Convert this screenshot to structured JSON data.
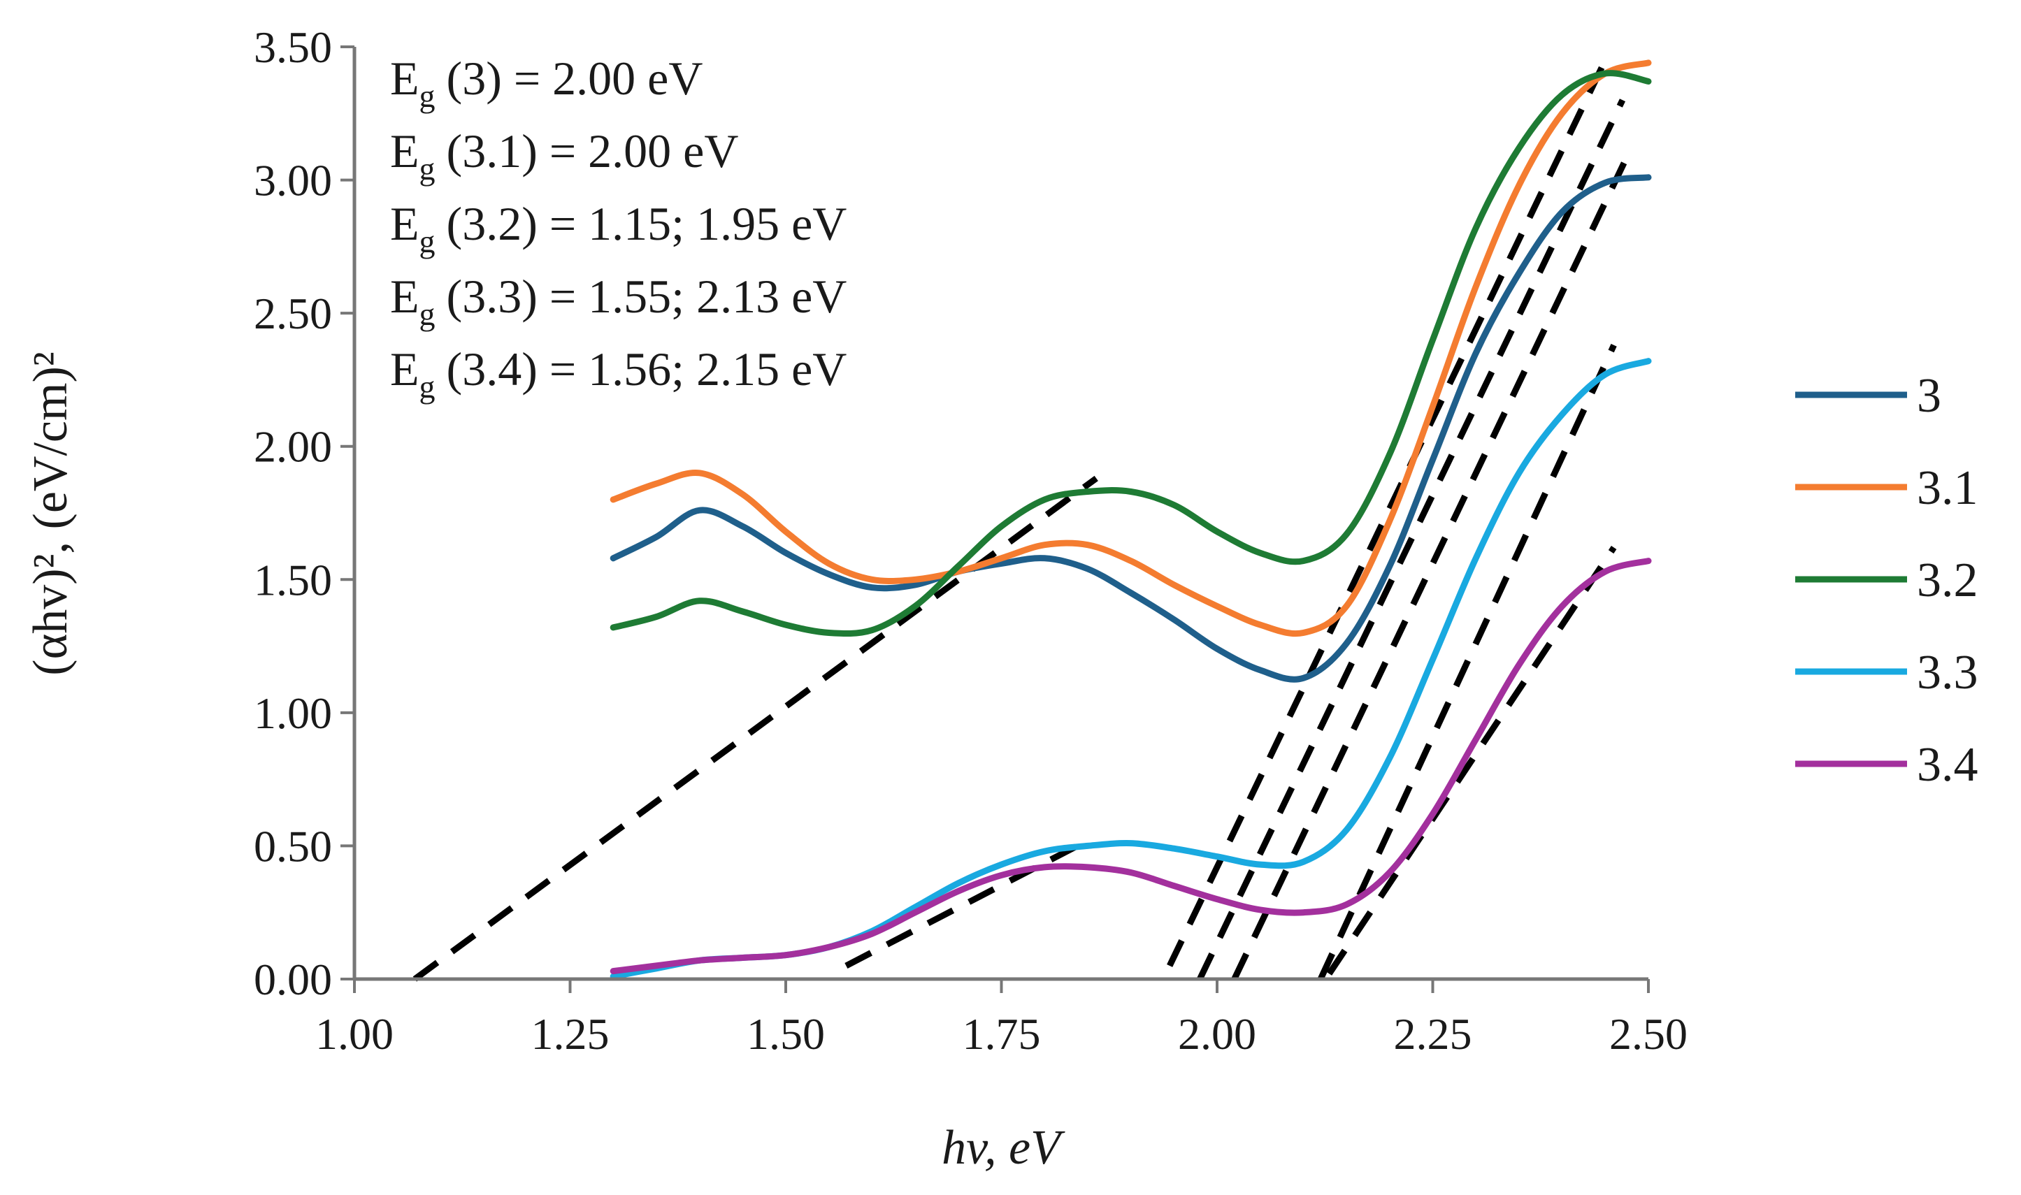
{
  "chart_data": {
    "type": "line",
    "title": "",
    "xlabel": "hv, eV",
    "ylabel": "(αhv)², (eV/cm)²",
    "xlim": [
      1.0,
      2.5
    ],
    "ylim": [
      0.0,
      3.5
    ],
    "xticks": [
      "1.00",
      "1.25",
      "1.50",
      "1.75",
      "2.00",
      "2.25",
      "2.50"
    ],
    "yticks": [
      "0.00",
      "0.50",
      "1.00",
      "1.50",
      "2.00",
      "2.50",
      "3.00",
      "3.50"
    ],
    "grid": false,
    "legend_position": "right",
    "annotations": [
      {
        "label": "(3) = 2.00 eV"
      },
      {
        "label": "(3.1) = 2.00 eV"
      },
      {
        "label": "(3.2) = 1.15; 1.95 eV"
      },
      {
        "label": "(3.3) = 1.55; 2.13 eV"
      },
      {
        "label": "(3.4) = 1.56; 2.15 eV"
      }
    ],
    "annotation_symbol": "E",
    "annotation_subscript": "g",
    "series": [
      {
        "name": "3",
        "color": "#1f5f8b",
        "x": [
          1.3,
          1.35,
          1.4,
          1.45,
          1.5,
          1.55,
          1.6,
          1.65,
          1.7,
          1.75,
          1.8,
          1.85,
          1.9,
          1.95,
          2.0,
          2.05,
          2.1,
          2.15,
          2.2,
          2.25,
          2.3,
          2.35,
          2.4,
          2.45,
          2.5
        ],
        "y": [
          1.58,
          1.66,
          1.76,
          1.7,
          1.6,
          1.52,
          1.47,
          1.48,
          1.53,
          1.56,
          1.58,
          1.54,
          1.45,
          1.35,
          1.24,
          1.16,
          1.13,
          1.26,
          1.55,
          1.95,
          2.35,
          2.65,
          2.88,
          2.99,
          3.01
        ]
      },
      {
        "name": "3.1",
        "color": "#f47c30",
        "x": [
          1.3,
          1.35,
          1.4,
          1.45,
          1.5,
          1.55,
          1.6,
          1.65,
          1.7,
          1.75,
          1.8,
          1.85,
          1.9,
          1.95,
          2.0,
          2.05,
          2.1,
          2.15,
          2.2,
          2.25,
          2.3,
          2.35,
          2.4,
          2.45,
          2.5
        ],
        "y": [
          1.8,
          1.86,
          1.9,
          1.82,
          1.68,
          1.56,
          1.5,
          1.5,
          1.53,
          1.58,
          1.63,
          1.63,
          1.57,
          1.48,
          1.4,
          1.33,
          1.3,
          1.4,
          1.72,
          2.15,
          2.6,
          2.98,
          3.25,
          3.4,
          3.44
        ]
      },
      {
        "name": "3.2",
        "color": "#1e7b34",
        "x": [
          1.3,
          1.35,
          1.4,
          1.45,
          1.5,
          1.55,
          1.6,
          1.65,
          1.7,
          1.75,
          1.8,
          1.85,
          1.9,
          1.95,
          2.0,
          2.05,
          2.1,
          2.15,
          2.2,
          2.25,
          2.3,
          2.35,
          2.4,
          2.45,
          2.5
        ],
        "y": [
          1.32,
          1.36,
          1.42,
          1.38,
          1.33,
          1.3,
          1.31,
          1.4,
          1.55,
          1.7,
          1.8,
          1.83,
          1.83,
          1.78,
          1.68,
          1.6,
          1.57,
          1.67,
          1.97,
          2.4,
          2.82,
          3.12,
          3.32,
          3.4,
          3.37
        ]
      },
      {
        "name": "3.3",
        "color": "#19a9e0",
        "x": [
          1.3,
          1.35,
          1.4,
          1.45,
          1.5,
          1.55,
          1.6,
          1.65,
          1.7,
          1.75,
          1.8,
          1.85,
          1.9,
          1.95,
          2.0,
          2.05,
          2.1,
          2.15,
          2.2,
          2.25,
          2.3,
          2.35,
          2.4,
          2.45,
          2.5
        ],
        "y": [
          0.01,
          0.04,
          0.07,
          0.08,
          0.09,
          0.12,
          0.18,
          0.27,
          0.36,
          0.43,
          0.48,
          0.5,
          0.51,
          0.49,
          0.46,
          0.43,
          0.44,
          0.56,
          0.83,
          1.2,
          1.58,
          1.9,
          2.12,
          2.27,
          2.32
        ]
      },
      {
        "name": "3.4",
        "color": "#a3309d",
        "x": [
          1.3,
          1.35,
          1.4,
          1.45,
          1.5,
          1.55,
          1.6,
          1.65,
          1.7,
          1.75,
          1.8,
          1.85,
          1.9,
          1.95,
          2.0,
          2.05,
          2.1,
          2.15,
          2.2,
          2.25,
          2.3,
          2.35,
          2.4,
          2.45,
          2.5
        ],
        "y": [
          0.03,
          0.05,
          0.07,
          0.08,
          0.09,
          0.12,
          0.17,
          0.25,
          0.33,
          0.39,
          0.42,
          0.42,
          0.4,
          0.35,
          0.3,
          0.26,
          0.25,
          0.28,
          0.4,
          0.62,
          0.9,
          1.18,
          1.4,
          1.53,
          1.57
        ]
      }
    ],
    "fit_lines": [
      {
        "x": [
          1.07,
          1.86
        ],
        "y": [
          0.0,
          1.88
        ]
      },
      {
        "x": [
          1.945,
          2.45
        ],
        "y": [
          0.05,
          3.45
        ]
      },
      {
        "x": [
          1.98,
          2.47
        ],
        "y": [
          0.0,
          3.3
        ]
      },
      {
        "x": [
          2.02,
          2.48
        ],
        "y": [
          0.0,
          3.12
        ]
      },
      {
        "x": [
          1.57,
          1.85
        ],
        "y": [
          0.05,
          0.52
        ]
      },
      {
        "x": [
          2.12,
          2.46
        ],
        "y": [
          0.0,
          2.38
        ]
      },
      {
        "x": [
          2.13,
          2.46
        ],
        "y": [
          0.02,
          1.62
        ]
      }
    ],
    "fit_line_color": "#000000"
  }
}
